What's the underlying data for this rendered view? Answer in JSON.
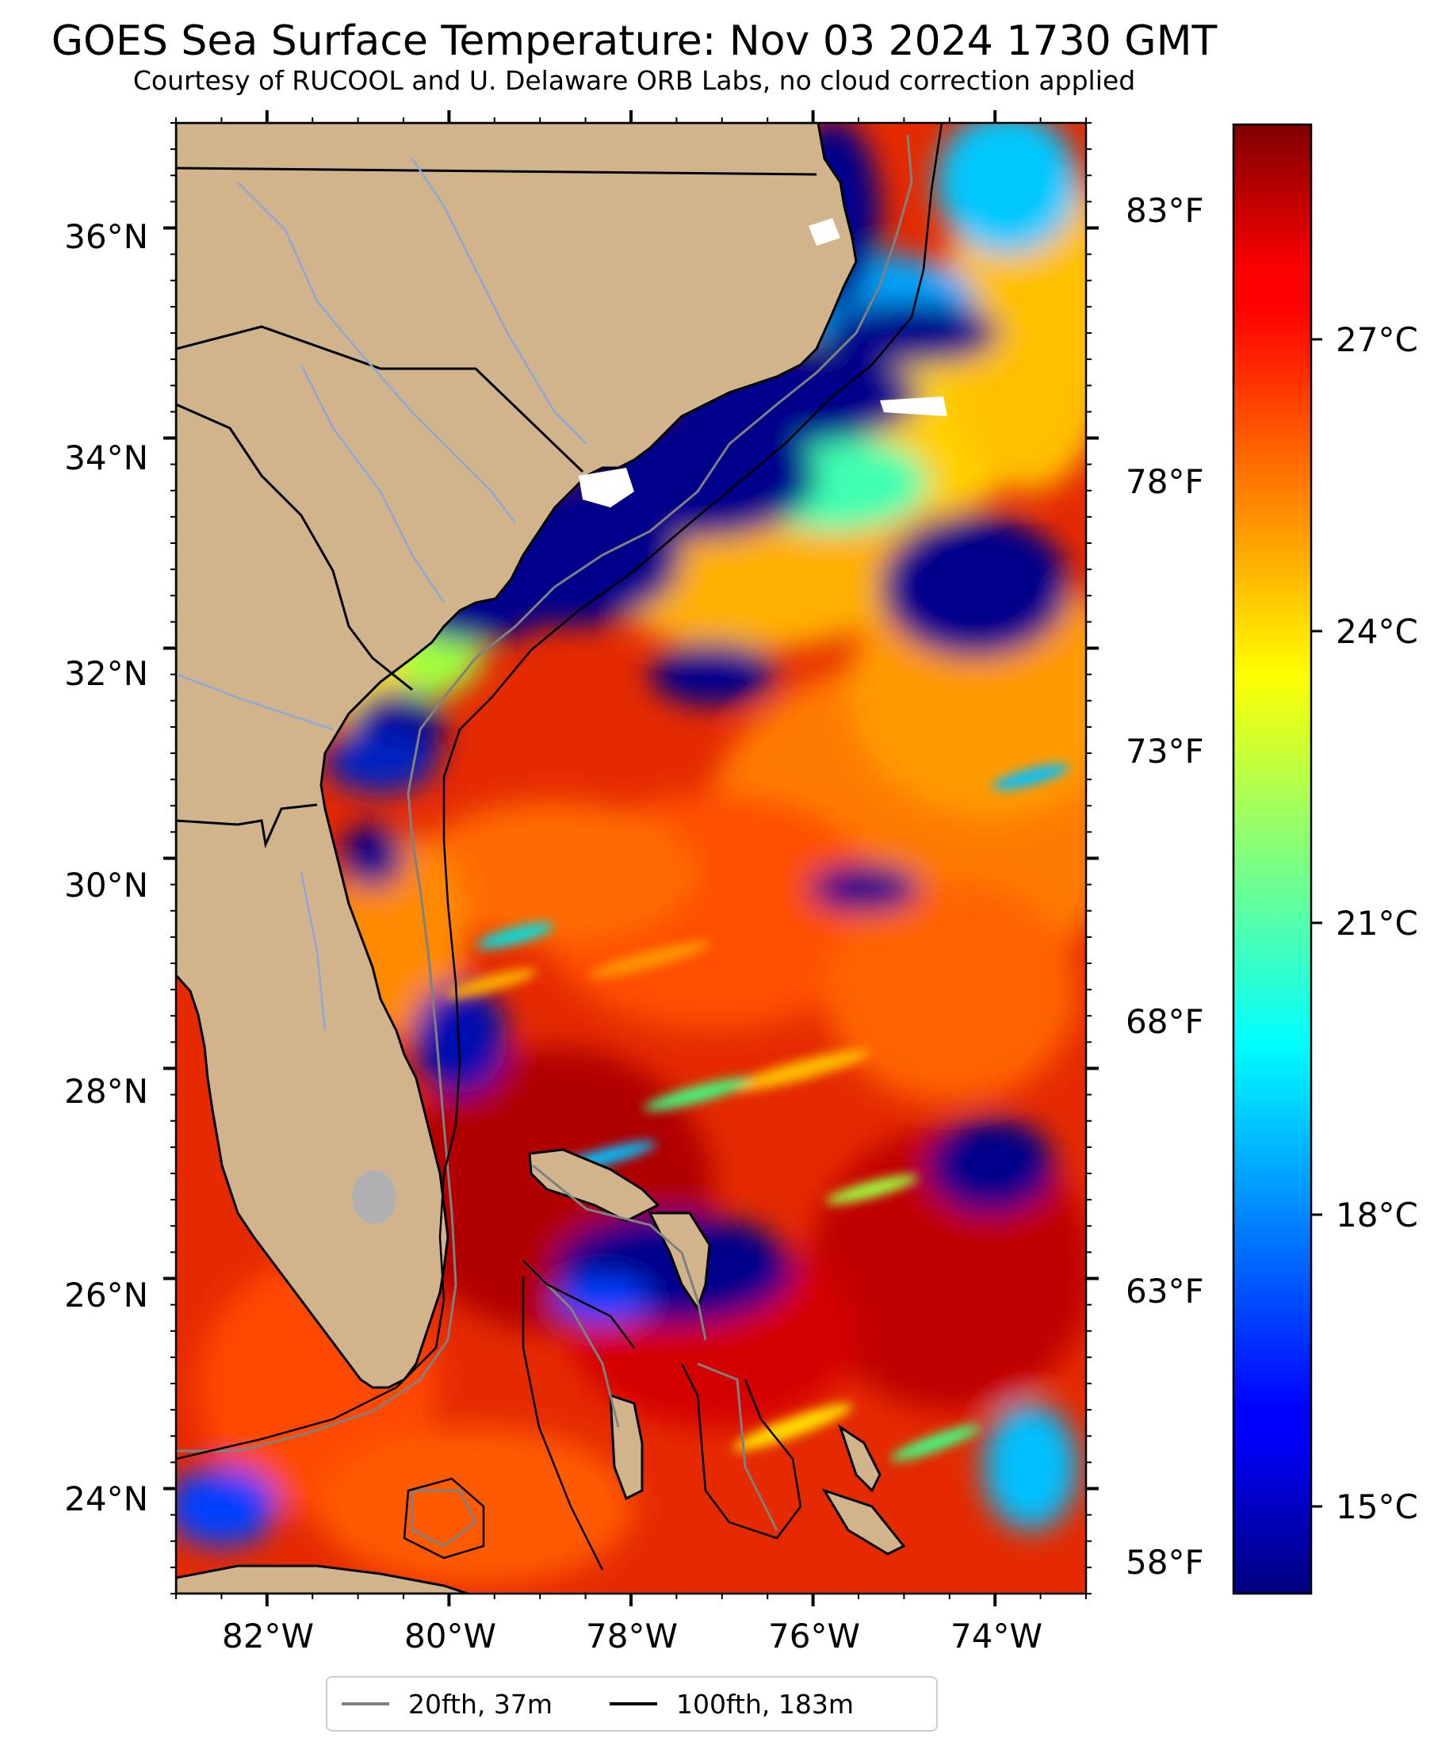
{
  "title": "GOES Sea Surface Temperature: Nov 03 2024 1730 GMT",
  "subtitle": "Courtesy of RUCOOL and U. Delaware ORB Labs, no cloud correction applied",
  "map": {
    "lon_range": [
      -83,
      -73
    ],
    "lat_range": [
      23,
      37
    ],
    "lat_ticks": [
      "36°N",
      "34°N",
      "32°N",
      "30°N",
      "28°N",
      "26°N",
      "24°N"
    ],
    "lon_ticks": [
      "82°W",
      "80°W",
      "78°W",
      "76°W",
      "74°W"
    ],
    "fahrenheit_ticks": [
      "83°F",
      "78°F",
      "73°F",
      "68°F",
      "63°F",
      "58°F"
    ],
    "land_color": "#d2b48c",
    "cloud_color": "#00008b"
  },
  "colorbar": {
    "colormap": "jet",
    "range_c": [
      13.5,
      29.5
    ],
    "ticks": [
      "27°C",
      "24°C",
      "21°C",
      "18°C",
      "15°C"
    ]
  },
  "legend": {
    "items": [
      {
        "label": "20fth, 37m",
        "color": "#808080"
      },
      {
        "label": "100fth, 183m",
        "color": "#000000"
      }
    ]
  }
}
